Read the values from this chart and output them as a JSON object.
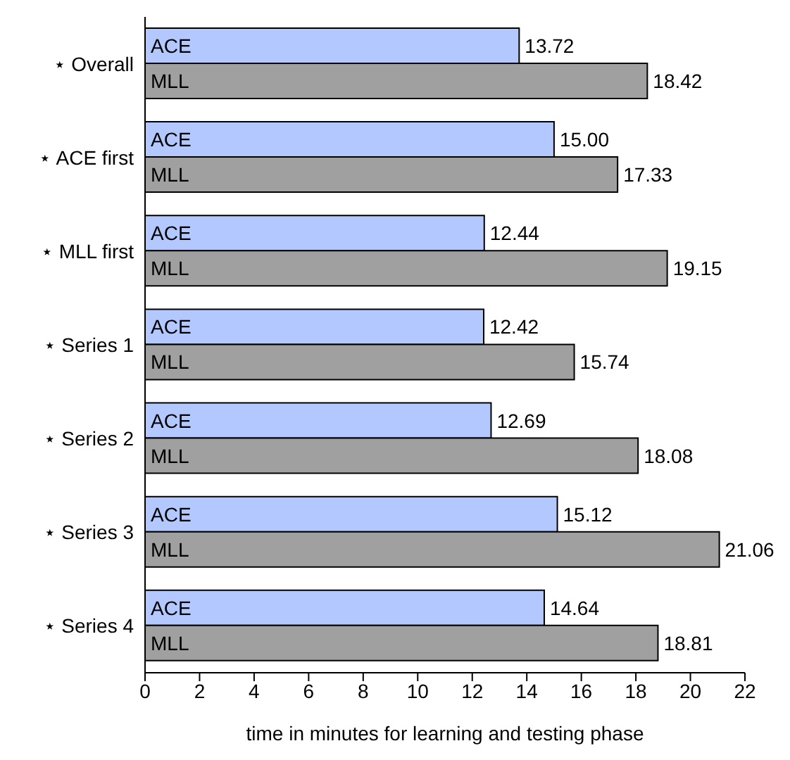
{
  "chart_data": {
    "type": "bar",
    "orientation": "horizontal",
    "xlabel": "time in minutes for learning and testing phase",
    "categories": [
      "⋆ Overall",
      "⋆ ACE first",
      "⋆ MLL first",
      "⋆ Series 1",
      "⋆ Series 2",
      "⋆ Series 3",
      "⋆ Series 4"
    ],
    "series": [
      {
        "name": "ACE",
        "color": "#b3c8ff",
        "values": [
          13.72,
          15.0,
          12.44,
          12.42,
          12.69,
          15.12,
          14.64
        ],
        "value_labels": [
          "13.72",
          "15.00",
          "12.44",
          "12.42",
          "12.69",
          "15.12",
          "14.64"
        ]
      },
      {
        "name": "MLL",
        "color": "#a0a0a0",
        "values": [
          18.42,
          17.33,
          19.15,
          15.74,
          18.08,
          21.06,
          18.81
        ],
        "value_labels": [
          "18.42",
          "17.33",
          "19.15",
          "15.74",
          "18.08",
          "21.06",
          "18.81"
        ]
      }
    ],
    "xlim": [
      0,
      22
    ],
    "xticks": [
      0,
      2,
      4,
      6,
      8,
      10,
      12,
      14,
      16,
      18,
      20,
      22
    ],
    "grid": false,
    "legend": false
  }
}
